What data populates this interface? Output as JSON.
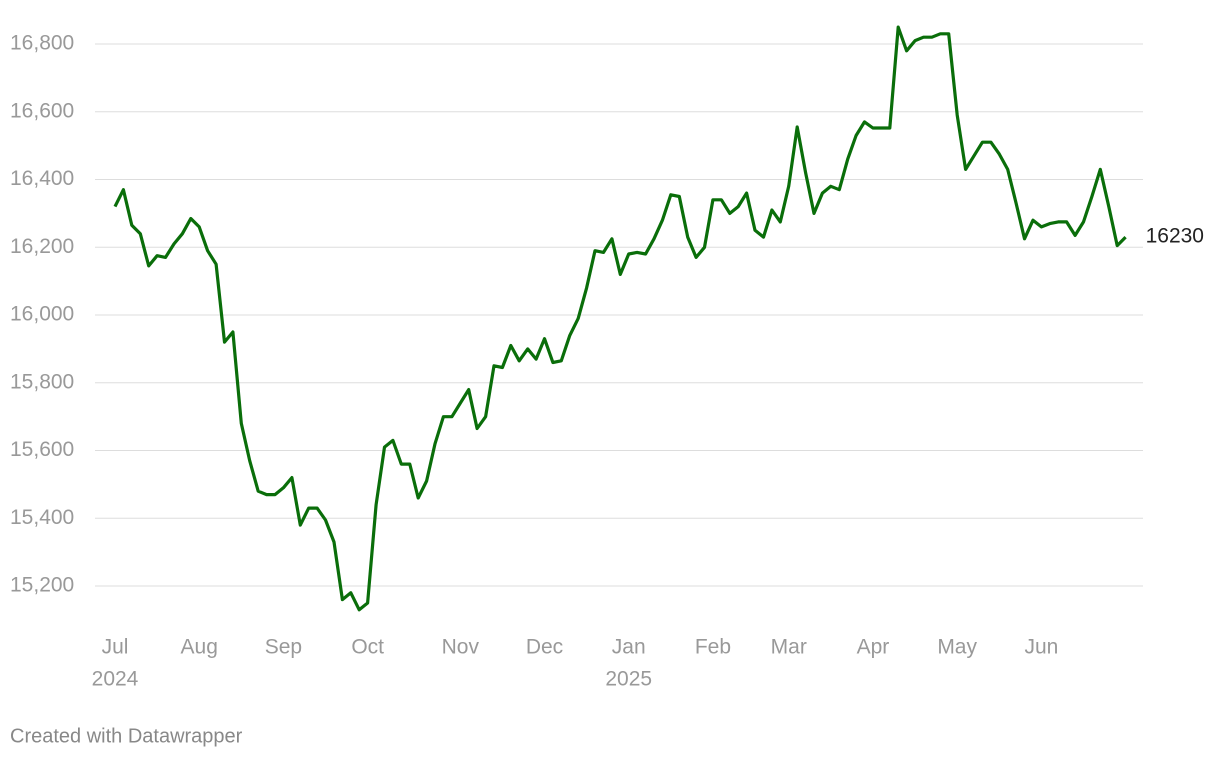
{
  "chart_data": {
    "type": "line",
    "categories": [
      "Jul",
      null,
      null,
      null,
      null,
      null,
      null,
      null,
      null,
      null,
      "Aug",
      null,
      null,
      null,
      null,
      null,
      null,
      null,
      null,
      null,
      "Sep",
      null,
      null,
      null,
      null,
      null,
      null,
      null,
      null,
      null,
      "Oct",
      null,
      null,
      null,
      null,
      null,
      null,
      null,
      null,
      null,
      null,
      "Nov",
      null,
      null,
      null,
      null,
      null,
      null,
      null,
      null,
      null,
      "Dec",
      null,
      null,
      null,
      null,
      null,
      null,
      null,
      null,
      null,
      "Jan",
      null,
      null,
      null,
      null,
      null,
      null,
      null,
      null,
      null,
      "Feb",
      null,
      null,
      null,
      null,
      null,
      null,
      null,
      null,
      "Mar",
      null,
      null,
      null,
      null,
      null,
      null,
      null,
      null,
      null,
      "Apr",
      null,
      null,
      null,
      null,
      null,
      null,
      null,
      null,
      null,
      "May",
      null,
      null,
      null,
      null,
      null,
      null,
      null,
      null,
      null,
      "Jun",
      null,
      null,
      null,
      null,
      null,
      null,
      null,
      null,
      null,
      null
    ],
    "category_years": [
      "2024",
      null,
      null,
      null,
      null,
      null,
      null,
      null,
      null,
      null,
      null,
      null,
      null,
      null,
      null,
      null,
      null,
      null,
      null,
      null,
      null,
      null,
      null,
      null,
      null,
      null,
      null,
      null,
      null,
      null,
      null,
      null,
      null,
      null,
      null,
      null,
      null,
      null,
      null,
      null,
      null,
      null,
      null,
      null,
      null,
      null,
      null,
      null,
      null,
      null,
      null,
      null,
      null,
      null,
      null,
      null,
      null,
      null,
      null,
      null,
      null,
      "2025",
      null,
      null,
      null,
      null,
      null,
      null,
      null,
      null,
      null,
      null,
      null,
      null,
      null,
      null,
      null,
      null,
      null,
      null,
      null,
      null,
      null,
      null,
      null,
      null,
      null,
      null,
      null,
      null,
      null,
      null,
      null,
      null,
      null,
      null,
      null,
      null,
      null,
      null,
      null,
      null,
      null,
      null,
      null,
      null,
      null,
      null,
      null,
      null,
      null,
      null,
      null,
      null,
      null,
      null,
      null,
      null,
      null,
      null,
      null
    ],
    "values": [
      16320,
      16370,
      16265,
      16240,
      16145,
      16175,
      16170,
      16210,
      16240,
      16285,
      16260,
      16190,
      16150,
      15920,
      15950,
      15680,
      15570,
      15480,
      15470,
      15470,
      15490,
      15520,
      15380,
      15430,
      15430,
      15395,
      15330,
      15160,
      15180,
      15130,
      15150,
      15440,
      15610,
      15630,
      15560,
      15560,
      15460,
      15510,
      15620,
      15700,
      15700,
      15740,
      15780,
      15665,
      15700,
      15850,
      15845,
      15910,
      15865,
      15900,
      15870,
      15930,
      15860,
      15865,
      15940,
      15990,
      16080,
      16190,
      16185,
      16225,
      16120,
      16180,
      16185,
      16180,
      16225,
      16280,
      16355,
      16350,
      16230,
      16170,
      16200,
      16340,
      16340,
      16300,
      16320,
      16360,
      16250,
      16230,
      16310,
      16275,
      16380,
      16555,
      16420,
      16300,
      16360,
      16380,
      16370,
      16460,
      16530,
      16570,
      16552,
      16552,
      16552,
      16850,
      16780,
      16810,
      16820,
      16820,
      16830,
      16830,
      16590,
      16430,
      16470,
      16510,
      16510,
      16475,
      16430,
      16330,
      16225,
      16280,
      16260,
      16270,
      16275,
      16275,
      16235,
      16275,
      16350,
      16430,
      16320,
      16205,
      16230
    ],
    "color": "#0a6e0a",
    "ylim": [
      15080,
      16880
    ],
    "yticks": [
      {
        "value": 15200,
        "label": "15,200"
      },
      {
        "value": 15400,
        "label": "15,400"
      },
      {
        "value": 15600,
        "label": "15,600"
      },
      {
        "value": 15800,
        "label": "15,800"
      },
      {
        "value": 16000,
        "label": "16,000"
      },
      {
        "value": 16200,
        "label": "16,200"
      },
      {
        "value": 16400,
        "label": "16,400"
      },
      {
        "value": 16600,
        "label": "16,600"
      },
      {
        "value": 16800,
        "label": "16,800"
      }
    ],
    "grid": true,
    "source": "Created with Datawrapper"
  }
}
